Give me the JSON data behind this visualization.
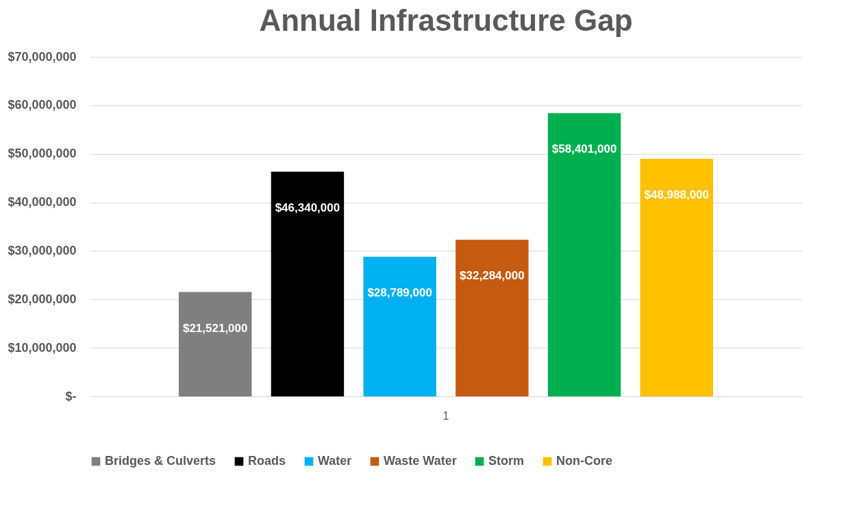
{
  "chart_data": {
    "type": "bar",
    "title": "Annual Infrastructure Gap",
    "categories": [
      "1"
    ],
    "series": [
      {
        "name": "Bridges & Culverts",
        "color": "#7f7f7f",
        "values": [
          21521000
        ],
        "value_labels": [
          "$21,521,000"
        ]
      },
      {
        "name": "Roads",
        "color": "#000000",
        "values": [
          46340000
        ],
        "value_labels": [
          "$46,340,000"
        ]
      },
      {
        "name": "Water",
        "color": "#00b0f0",
        "values": [
          28789000
        ],
        "value_labels": [
          "$28,789,000"
        ]
      },
      {
        "name": "Waste Water",
        "color": "#c55a11",
        "values": [
          32284000
        ],
        "value_labels": [
          "$32,284,000"
        ]
      },
      {
        "name": "Storm",
        "color": "#00b050",
        "values": [
          58401000
        ],
        "value_labels": [
          "$58,401,000"
        ]
      },
      {
        "name": "Non-Core",
        "color": "#ffc000",
        "values": [
          48988000
        ],
        "value_labels": [
          "$48,988,000"
        ]
      }
    ],
    "ylim": [
      0,
      70000000
    ],
    "yticks": [
      {
        "value": 0,
        "label": "$-"
      },
      {
        "value": 10000000,
        "label": "$10,000,000"
      },
      {
        "value": 20000000,
        "label": "$20,000,000"
      },
      {
        "value": 30000000,
        "label": "$30,000,000"
      },
      {
        "value": 40000000,
        "label": "$40,000,000"
      },
      {
        "value": 50000000,
        "label": "$50,000,000"
      },
      {
        "value": 60000000,
        "label": "$60,000,000"
      },
      {
        "value": 70000000,
        "label": "$70,000,000"
      }
    ],
    "grid": "y",
    "legend": "bottom"
  }
}
